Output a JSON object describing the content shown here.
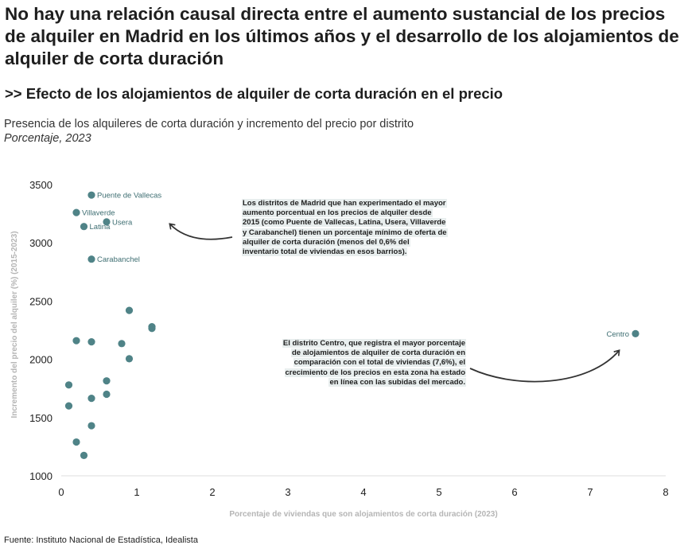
{
  "header": {
    "title": "No hay una relación causal directa entre el aumento sustancial de los precios de alquiler en Madrid en los últimos años y el desarrollo de los alojamientos de alquiler de corta duración",
    "subtitle": ">> Efecto de los alojamientos de alquiler de corta duración en el precio",
    "description": "Presencia de los alquileres de corta duración y incremento del precio por distrito",
    "unit": "Porcentaje, 2023"
  },
  "annotations": {
    "left": "Los distritos de Madrid que han experimentado el mayor aumento porcentual en los precios de alquiler desde 2015 (como Puente de Vallecas, Latina, Usera, Villaverde y Carabanchel) tienen un porcentaje mínimo de oferta de alquiler de corta duración (menos del 0,6% del inventario total de viviendas en esos barrios).",
    "right": "El distrito Centro, que registra el mayor porcentaje de alojamientos de alquiler de corta duración en comparación con el total de viviendas (7,6%), el crecimiento de los precios en esta zona ha estado en línea con las subidas del mercado."
  },
  "footer": {
    "source": "Fuente: Instituto Nacional de Estadística, Idealista"
  },
  "colors": {
    "point": "#4f8387",
    "label": "#3e6e72",
    "annotation_bg": "#e8eeee",
    "arrow": "#333333"
  },
  "chart_data": {
    "type": "scatter",
    "xlabel": "Porcentaje de viviendas que son alojamientos de corta duración (2023)",
    "ylabel": "Incremento del precio del alquiler (%) (2015-2023)",
    "xlim": [
      0,
      8
    ],
    "ylim": [
      1000,
      3600
    ],
    "xticks": [
      0,
      1,
      2,
      3,
      4,
      5,
      6,
      7,
      8
    ],
    "yticks": [
      1000,
      1500,
      2000,
      2500,
      3000,
      3500
    ],
    "grid": false,
    "points": [
      {
        "x": 0.4,
        "y": 3410,
        "label": "Puente de Vallecas"
      },
      {
        "x": 0.2,
        "y": 3260,
        "label": "Villaverde"
      },
      {
        "x": 0.6,
        "y": 3180,
        "label": "Usera"
      },
      {
        "x": 0.3,
        "y": 3140,
        "label": "Latina"
      },
      {
        "x": 0.4,
        "y": 2860,
        "label": "Carabanchel"
      },
      {
        "x": 7.6,
        "y": 2220,
        "label": "Centro"
      },
      {
        "x": 0.9,
        "y": 2420
      },
      {
        "x": 1.2,
        "y": 2280
      },
      {
        "x": 1.2,
        "y": 2265
      },
      {
        "x": 0.2,
        "y": 2160
      },
      {
        "x": 0.4,
        "y": 2150
      },
      {
        "x": 0.8,
        "y": 2135
      },
      {
        "x": 0.9,
        "y": 2005
      },
      {
        "x": 0.6,
        "y": 1815
      },
      {
        "x": 0.1,
        "y": 1780
      },
      {
        "x": 0.6,
        "y": 1700
      },
      {
        "x": 0.4,
        "y": 1665
      },
      {
        "x": 0.1,
        "y": 1600
      },
      {
        "x": 0.4,
        "y": 1430
      },
      {
        "x": 0.2,
        "y": 1290
      },
      {
        "x": 0.3,
        "y": 1175
      }
    ]
  }
}
